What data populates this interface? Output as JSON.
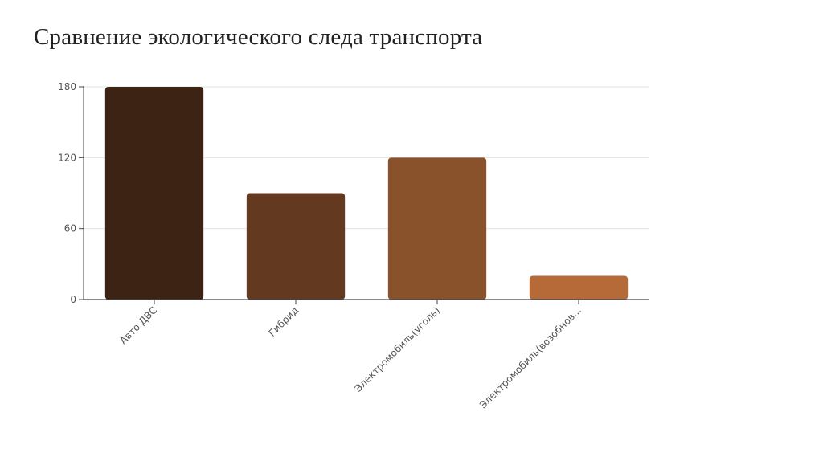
{
  "slide": {
    "title": "Сравнение экологического следа транспорта"
  },
  "chart_data": {
    "type": "bar",
    "categories": [
      "Авто ДВС",
      "Гибрид",
      "Электромобиль(уголь)",
      "Электромобиль(возобнов..."
    ],
    "values": [
      180,
      90,
      120,
      20
    ],
    "colors": [
      "#3d2314",
      "#633a1f",
      "#8a522a",
      "#b56a38"
    ],
    "ylim": [
      0,
      180
    ],
    "yticks": [
      0,
      60,
      120,
      180
    ],
    "grid": true,
    "title": "",
    "xlabel": "",
    "ylabel": ""
  }
}
